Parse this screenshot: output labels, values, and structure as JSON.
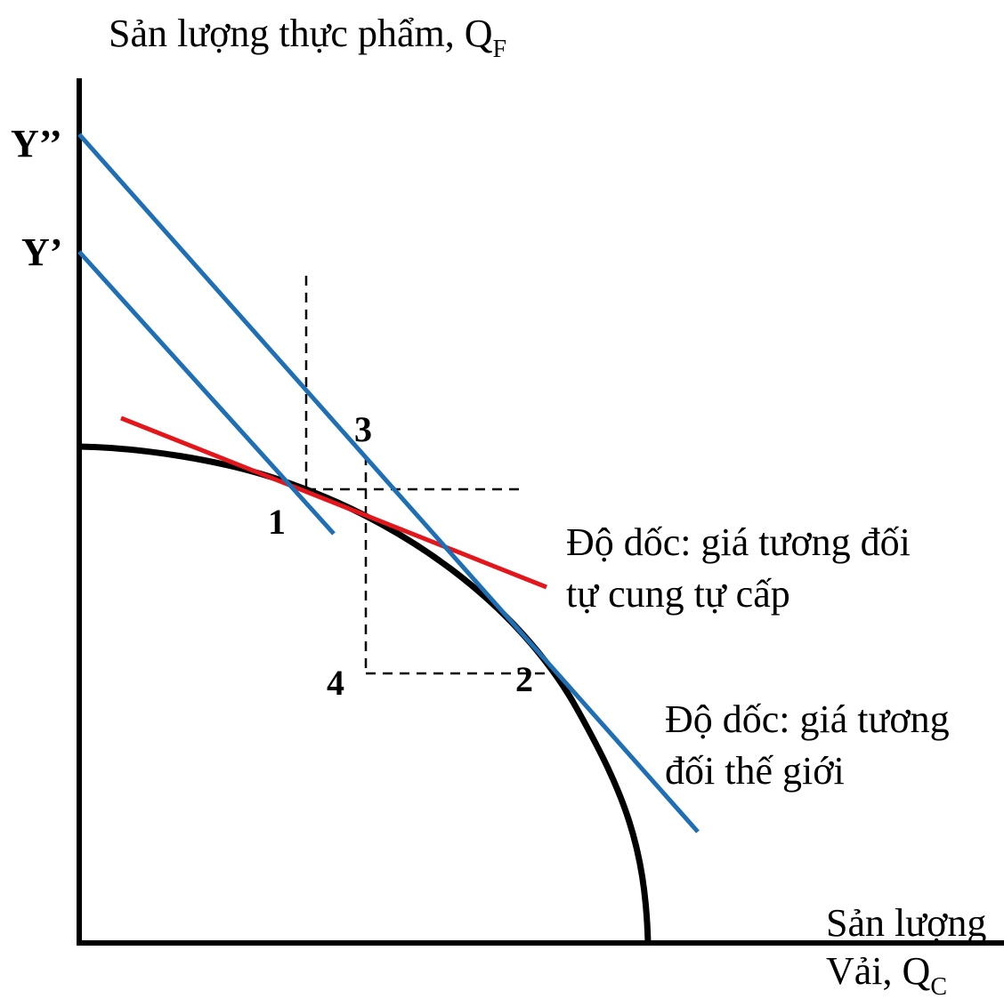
{
  "labels": {
    "y_axis_title": "Sản lượng thực phẩm, Q",
    "y_axis_subscript": "F",
    "x_axis_title_line1": "Sản lượng",
    "x_axis_title_line2": "Vải, Q",
    "x_axis_subscript": "C",
    "y_double_prime": "Y’’",
    "y_prime": "Y’",
    "point_1": "1",
    "point_2": "2",
    "point_3": "3",
    "point_4": "4",
    "autarky_slope_line1": "Độ dốc: giá tương đối",
    "autarky_slope_line2": "tự cung tự cấp",
    "world_slope_line1": "Độ dốc: giá tương",
    "world_slope_line2": "đối thế giới"
  },
  "colors": {
    "axis": "#000000",
    "ppf_curve": "#000000",
    "budget_lines": "#1f6fb5",
    "autarky_line": "#e3161c",
    "guides": "#000000"
  },
  "icons": {
    "curve": "production-possibility-frontier",
    "budget": "income-lines",
    "tangent": "relative-price-line"
  }
}
